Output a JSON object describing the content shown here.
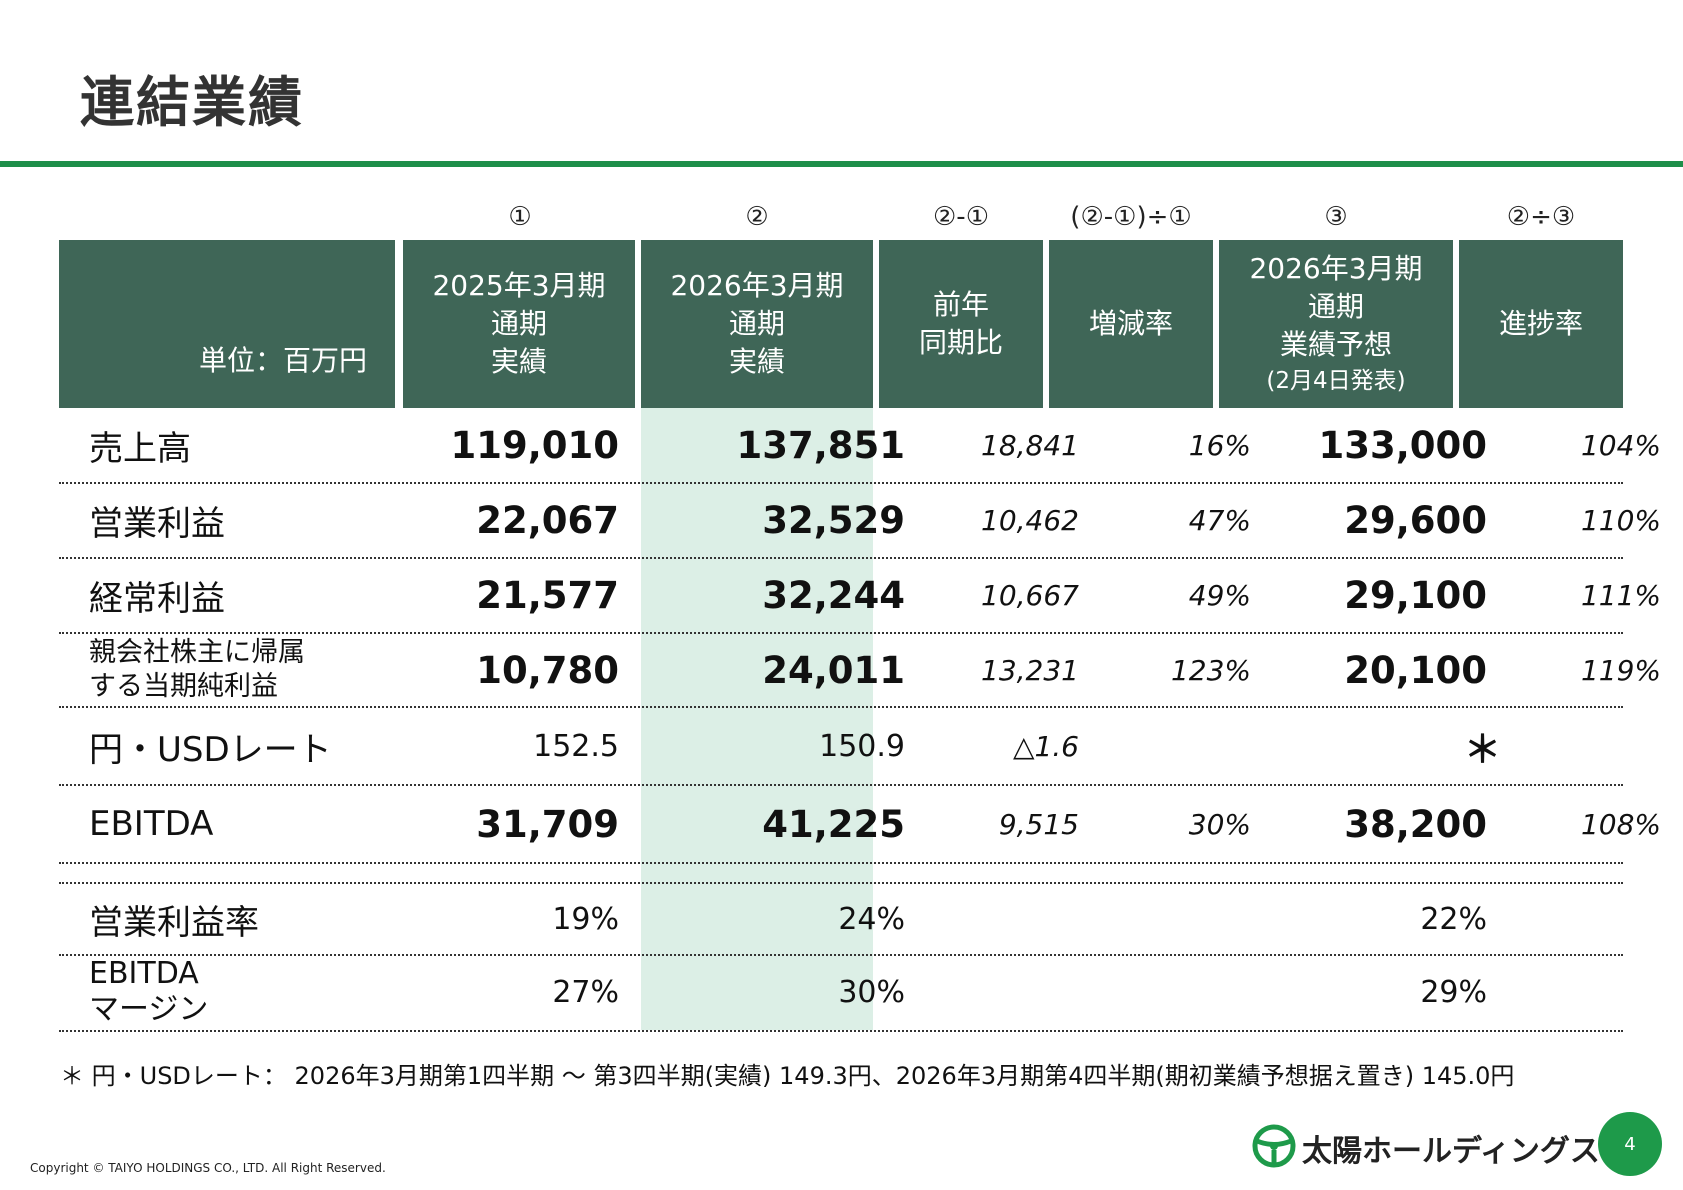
{
  "title": "連結業績",
  "column_refs": [
    "①",
    "②",
    "②-①",
    "(②-①)÷①",
    "③",
    "②÷③"
  ],
  "header": {
    "unit": "単位：百万円",
    "col1": [
      "2025年3月期",
      "通期",
      "実績"
    ],
    "col2": [
      "2026年3月期",
      "通期",
      "実績"
    ],
    "col3": [
      "前年",
      "同期比"
    ],
    "col4": [
      "増減率"
    ],
    "col5": [
      "2026年3月期",
      "通期",
      "業績予想",
      "(2月4日発表)"
    ],
    "col6": [
      "進捗率"
    ]
  },
  "rows": [
    {
      "label": [
        "売上高"
      ],
      "fy2025": "119,010",
      "fy2026": "137,851",
      "yoy": "18,841",
      "change": "16%",
      "forecast": "133,000",
      "progress": "104%"
    },
    {
      "label": [
        "営業利益"
      ],
      "fy2025": "22,067",
      "fy2026": "32,529",
      "yoy": "10,462",
      "change": "47%",
      "forecast": "29,600",
      "progress": "110%"
    },
    {
      "label": [
        "経常利益"
      ],
      "fy2025": "21,577",
      "fy2026": "32,244",
      "yoy": "10,667",
      "change": "49%",
      "forecast": "29,100",
      "progress": "111%"
    },
    {
      "label": [
        "親会社株主に帰属",
        "する当期純利益"
      ],
      "fy2025": "10,780",
      "fy2026": "24,011",
      "yoy": "13,231",
      "change": "123%",
      "forecast": "20,100",
      "progress": "119%"
    },
    {
      "label": [
        "円・USDレート"
      ],
      "fy2025": "152.5",
      "fy2026": "150.9",
      "yoy": "△1.6",
      "change": "",
      "forecast": "＊",
      "progress": ""
    },
    {
      "label": [
        "EBITDA"
      ],
      "fy2025": "31,709",
      "fy2026": "41,225",
      "yoy": "9,515",
      "change": "30%",
      "forecast": "38,200",
      "progress": "108%"
    },
    {
      "label": [
        "営業利益率"
      ],
      "fy2025": "19%",
      "fy2026": "24%",
      "yoy": "",
      "change": "",
      "forecast": "22%",
      "progress": ""
    },
    {
      "label": [
        "EBITDA",
        "マージン"
      ],
      "fy2025": "27%",
      "fy2026": "30%",
      "yoy": "",
      "change": "",
      "forecast": "29%",
      "progress": ""
    }
  ],
  "footnote": "＊ 円・USDレート： 2026年3月期第1四半期 ～ 第3四半期(実績) 149.3円、2026年3月期第4四半期(期初業績予想据え置き) 145.0円",
  "copyright": "Copyright © TAIYO HOLDINGS CO., LTD.  All Right Reserved.",
  "logo_text": "太陽ホールディングス",
  "page_number": "4",
  "colors": {
    "header_bg": "#3f6657",
    "highlight_col": "#dcefe6",
    "accent": "#1e8f4a",
    "page_badge": "#1e9a4a"
  }
}
